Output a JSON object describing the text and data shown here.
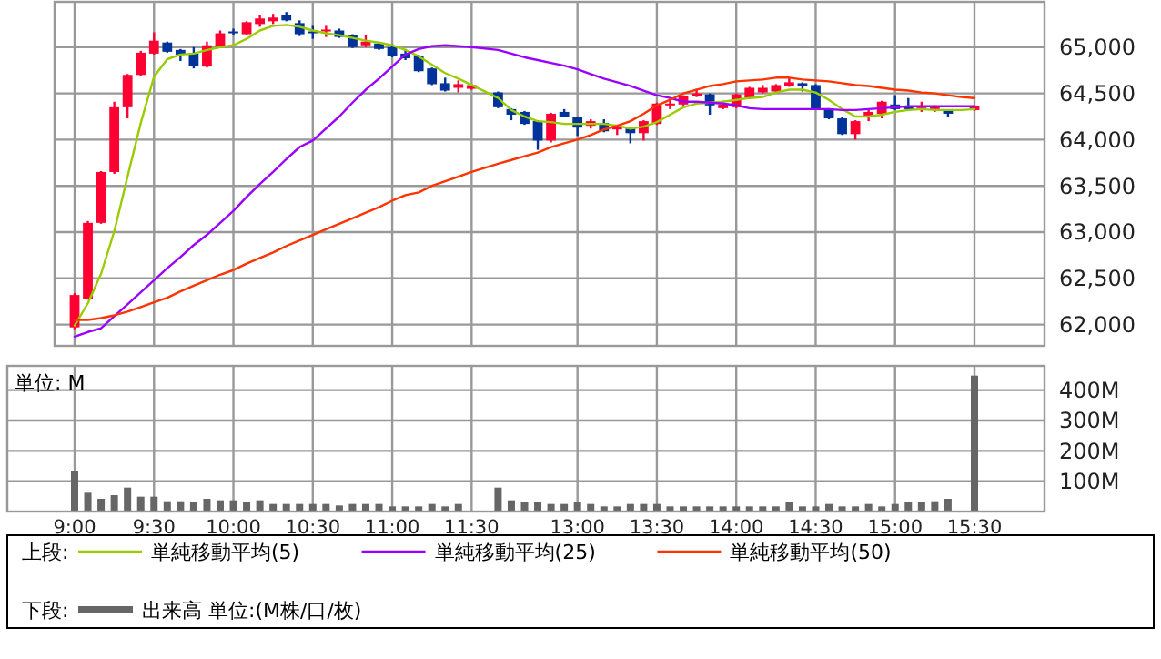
{
  "chart_data": [
    {
      "type": "candlestick",
      "categories": [
        null,
        null,
        null,
        null,
        null,
        null,
        null,
        null,
        null,
        null,
        null,
        null,
        null,
        null,
        null,
        null,
        null,
        null,
        null,
        null,
        null,
        null,
        null,
        null,
        null,
        null,
        null,
        null,
        null,
        null,
        null,
        null,
        null,
        null,
        null,
        null,
        null,
        null,
        null,
        null,
        null,
        null,
        null,
        null,
        null,
        null,
        null,
        null,
        null,
        null,
        null,
        null,
        null,
        null,
        null,
        null,
        null,
        null,
        null,
        null,
        null,
        null,
        null,
        null,
        null,
        null,
        null,
        null,
        null
      ],
      "ohlc": [
        [
          61970,
          62340,
          61950,
          62320
        ],
        [
          62280,
          63120,
          62270,
          63100
        ],
        [
          63100,
          63660,
          63090,
          63650
        ],
        [
          63650,
          64410,
          63630,
          64350
        ],
        [
          64350,
          64710,
          64230,
          64700
        ],
        [
          64700,
          64960,
          64690,
          64940
        ],
        [
          64930,
          65160,
          64920,
          65070
        ],
        [
          65050,
          65060,
          64940,
          64950
        ],
        [
          64970,
          64980,
          64850,
          64920
        ],
        [
          64930,
          65000,
          64770,
          64800
        ],
        [
          64790,
          65060,
          64780,
          65020
        ],
        [
          65000,
          65180,
          64990,
          65150
        ],
        [
          65170,
          65200,
          65130,
          65170
        ],
        [
          65140,
          65280,
          65130,
          65270
        ],
        [
          65250,
          65350,
          65220,
          65310
        ],
        [
          65280,
          65360,
          65250,
          65320
        ],
        [
          65350,
          65380,
          65280,
          65290
        ],
        [
          65260,
          65290,
          65120,
          65140
        ],
        [
          65170,
          65230,
          65090,
          65170
        ],
        [
          65170,
          65230,
          65110,
          65190
        ],
        [
          65180,
          65200,
          65100,
          65110
        ],
        [
          65130,
          65140,
          64990,
          65000
        ],
        [
          65020,
          65130,
          65000,
          65060
        ],
        [
          65040,
          65050,
          64970,
          64980
        ],
        [
          65000,
          65030,
          64890,
          64900
        ],
        [
          64930,
          64980,
          64860,
          64880
        ],
        [
          64900,
          64920,
          64730,
          64740
        ],
        [
          64770,
          64780,
          64590,
          64600
        ],
        [
          64610,
          64670,
          64520,
          64530
        ],
        [
          64560,
          64640,
          64510,
          64600
        ],
        [
          64550,
          64600,
          64540,
          64590
        ],
        null,
        [
          64510,
          64520,
          64340,
          64350
        ],
        [
          64330,
          64340,
          64210,
          64270
        ],
        [
          64300,
          64310,
          64160,
          64170
        ],
        [
          64200,
          64210,
          63890,
          63990
        ],
        [
          63990,
          64290,
          63970,
          64280
        ],
        [
          64300,
          64330,
          64240,
          64250
        ],
        [
          64240,
          64250,
          64040,
          64130
        ],
        [
          64150,
          64220,
          64120,
          64200
        ],
        [
          64180,
          64220,
          64080,
          64090
        ],
        [
          64110,
          64160,
          64050,
          64150
        ],
        [
          64120,
          64130,
          63960,
          64070
        ],
        [
          64070,
          64210,
          63990,
          64200
        ],
        [
          64170,
          64400,
          64160,
          64390
        ],
        [
          64370,
          64420,
          64330,
          64390
        ],
        [
          64380,
          64480,
          64370,
          64470
        ],
        [
          64470,
          64550,
          64460,
          64500
        ],
        [
          64490,
          64500,
          64270,
          64370
        ],
        [
          64340,
          64420,
          64330,
          64380
        ],
        [
          64350,
          64500,
          64340,
          64490
        ],
        [
          64450,
          64570,
          64440,
          64560
        ],
        [
          64510,
          64590,
          64500,
          64560
        ],
        [
          64520,
          64600,
          64510,
          64590
        ],
        [
          64580,
          64670,
          64570,
          64620
        ],
        [
          64610,
          64620,
          64520,
          64580
        ],
        [
          64590,
          64600,
          64320,
          64330
        ],
        [
          64330,
          64340,
          64220,
          64230
        ],
        [
          64230,
          64240,
          64050,
          64060
        ],
        [
          64060,
          64210,
          64000,
          64200
        ],
        [
          64250,
          64330,
          64200,
          64300
        ],
        [
          64280,
          64420,
          64230,
          64410
        ],
        [
          64380,
          64480,
          64320,
          64330
        ],
        [
          64360,
          64450,
          64320,
          64330
        ],
        [
          64340,
          64410,
          64300,
          64360
        ],
        [
          64330,
          64370,
          64300,
          64350
        ],
        [
          64310,
          64320,
          64250,
          64280
        ],
        null,
        [
          64320,
          64370,
          64310,
          64360
        ]
      ],
      "colors": [
        "#ff0033",
        "#ff0033",
        "#ff0033",
        "#ff0033",
        "#ff0033",
        "#ff0033",
        "#ff0033",
        "#003399",
        "#003399",
        "#003399",
        "#ff0033",
        "#ff0033",
        "#003399",
        "#ff0033",
        "#ff0033",
        "#ff0033",
        "#003399",
        "#003399",
        "#003399",
        "#ff0033",
        "#003399",
        "#003399",
        "#ff0033",
        "#003399",
        "#003399",
        "#003399",
        "#003399",
        "#003399",
        "#003399",
        "#ff0033",
        "#ff0033",
        null,
        "#003399",
        "#003399",
        "#003399",
        "#003399",
        "#ff0033",
        "#003399",
        "#003399",
        "#ff0033",
        "#003399",
        "#ff0033",
        "#003399",
        "#ff0033",
        "#ff0033",
        "#ff0033",
        "#ff0033",
        "#ff0033",
        "#003399",
        "#ff0033",
        "#ff0033",
        "#ff0033",
        "#ff0033",
        "#ff0033",
        "#ff0033",
        "#003399",
        "#003399",
        "#003399",
        "#003399",
        "#ff0033",
        "#ff0033",
        "#ff0033",
        "#003399",
        "#003399",
        "#ff0033",
        "#ff0033",
        "#003399",
        null,
        "#ff0033"
      ],
      "series": [
        {
          "type": "line",
          "name": "単純移動平均(5)",
          "color": "#99cc00",
          "values": [
            61990,
            62230,
            62550,
            63010,
            63600,
            64180,
            64680,
            64870,
            64920,
            64930,
            64970,
            65000,
            65020,
            65090,
            65180,
            65230,
            65240,
            65220,
            65180,
            65150,
            65130,
            65100,
            65070,
            65050,
            65020,
            64970,
            64900,
            64810,
            64720,
            64660,
            64590,
            null,
            64450,
            64320,
            64250,
            64200,
            64190,
            64170,
            64170,
            64170,
            64170,
            64150,
            64120,
            64140,
            64190,
            64270,
            64350,
            64390,
            64400,
            64410,
            64430,
            64450,
            64460,
            64510,
            64540,
            64540,
            64510,
            64430,
            64330,
            64250,
            64250,
            64270,
            64300,
            64320,
            64330,
            64320,
            64320,
            64320,
            64330
          ]
        },
        {
          "type": "line",
          "name": "単純移動平均(25)",
          "color": "#9900ff",
          "values": [
            61870,
            61920,
            61960,
            62090,
            62220,
            62350,
            62480,
            62610,
            62730,
            62860,
            62970,
            63100,
            63230,
            63380,
            63520,
            63650,
            63790,
            63920,
            63990,
            64120,
            64250,
            64400,
            64540,
            64660,
            64790,
            64920,
            64980,
            65010,
            65020,
            65010,
            65000,
            null,
            64970,
            64930,
            64890,
            64860,
            64830,
            64800,
            64760,
            64710,
            64660,
            64620,
            64580,
            64530,
            64480,
            64450,
            64410,
            64410,
            64400,
            64390,
            64370,
            64340,
            64330,
            64330,
            64330,
            64330,
            64330,
            64330,
            64320,
            64320,
            64330,
            64340,
            64350,
            64360,
            64360,
            64360,
            64360,
            64360,
            64360
          ]
        },
        {
          "type": "line",
          "name": "単純移動平均(50)",
          "color": "#ff3300",
          "values": [
            62050,
            62050,
            62070,
            62100,
            62140,
            62190,
            62240,
            62290,
            62360,
            62420,
            62480,
            62540,
            62590,
            62660,
            62720,
            62780,
            62850,
            62910,
            62970,
            63030,
            63090,
            63150,
            63210,
            63270,
            63340,
            63400,
            63430,
            63500,
            63550,
            63600,
            63650,
            null,
            63740,
            63780,
            63820,
            63860,
            63920,
            63960,
            64000,
            64050,
            64110,
            64150,
            64200,
            64280,
            64370,
            64430,
            64500,
            64540,
            64580,
            64600,
            64630,
            64640,
            64650,
            64670,
            64670,
            64650,
            64640,
            64630,
            64610,
            64590,
            64580,
            64560,
            64540,
            64530,
            64510,
            64500,
            64480,
            64460,
            64450
          ]
        }
      ],
      "ylim": [
        61770,
        65490
      ],
      "yticks": [
        {
          "value": 62000,
          "label": "62,000"
        },
        {
          "value": 62500,
          "label": "62,500"
        },
        {
          "value": 63000,
          "label": "63,000"
        },
        {
          "value": 63500,
          "label": "63,500"
        },
        {
          "value": 64000,
          "label": "64,000"
        },
        {
          "value": 64500,
          "label": "64,500"
        },
        {
          "value": 65000,
          "label": "65,000"
        }
      ],
      "grid": true,
      "tick_labels": "y",
      "legend": "bottom",
      "legend_title": "上段:"
    },
    {
      "type": "bar",
      "categories": [
        "9:00",
        null,
        null,
        null,
        null,
        null,
        "9:30",
        null,
        null,
        null,
        null,
        null,
        "10:00",
        null,
        null,
        null,
        null,
        null,
        "10:30",
        null,
        null,
        null,
        null,
        null,
        "11:00",
        null,
        null,
        null,
        null,
        null,
        "11:30",
        null,
        null,
        null,
        null,
        null,
        null,
        null,
        "13:00",
        null,
        null,
        null,
        null,
        null,
        "13:30",
        null,
        null,
        null,
        null,
        null,
        "14:00",
        null,
        null,
        null,
        null,
        null,
        "14:30",
        null,
        null,
        null,
        null,
        null,
        "15:00",
        null,
        null,
        null,
        null,
        null,
        "15:30"
      ],
      "series": [
        {
          "name": "出来高 単位:(M株/口/枚)",
          "color": "#666666",
          "values": [
            135,
            62,
            42,
            54,
            79,
            49,
            49,
            34,
            34,
            30,
            42,
            37,
            37,
            32,
            37,
            25,
            25,
            25,
            25,
            25,
            20,
            25,
            25,
            25,
            17,
            17,
            17,
            25,
            17,
            25,
            2,
            null,
            79,
            37,
            30,
            30,
            25,
            25,
            30,
            25,
            17,
            17,
            25,
            25,
            25,
            17,
            17,
            17,
            17,
            17,
            17,
            17,
            17,
            17,
            30,
            17,
            17,
            25,
            17,
            17,
            25,
            17,
            25,
            30,
            30,
            34,
            42,
            2,
            448
          ]
        }
      ],
      "ylim": [
        0,
        480
      ],
      "yticks": [
        {
          "value": 100,
          "label": "100M"
        },
        {
          "value": 200,
          "label": "200M"
        },
        {
          "value": 300,
          "label": "300M"
        },
        {
          "value": 400,
          "label": "400M"
        }
      ],
      "grid": true,
      "legend": "bottom",
      "legend_title": "下段:",
      "annotations": [
        "単位: M"
      ]
    }
  ]
}
